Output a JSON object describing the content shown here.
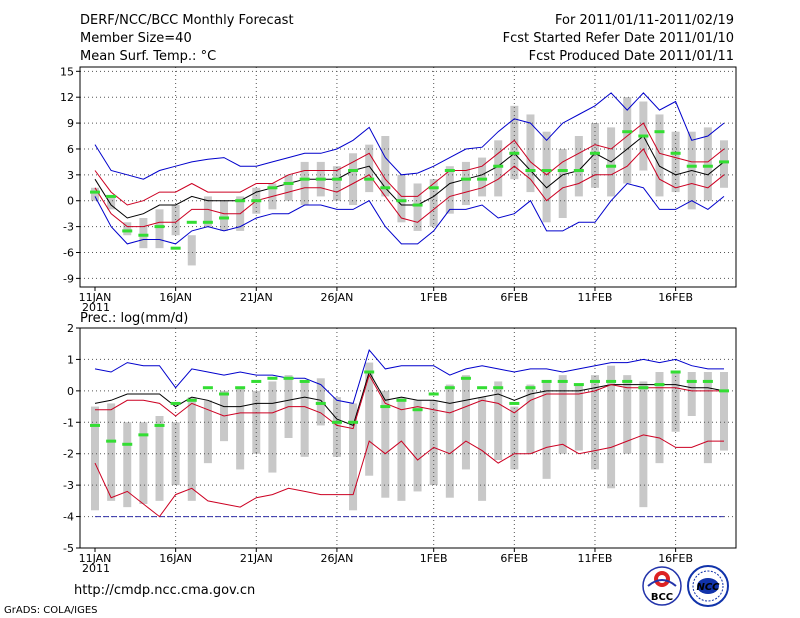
{
  "header": {
    "title": "DERF/NCC/BCC Monthly Forecast",
    "member_size": "Member Size=40",
    "variable_temp": "Mean Surf. Temp.: °C",
    "valid_range": "For 2011/01/11-2011/02/19",
    "start_date": "Fcst Started Refer Date 2011/01/10",
    "produced_date": "Fcst Produced Date 2011/01/11"
  },
  "footer": {
    "url": "http://cmdp.ncc.cma.gov.cn",
    "credit": "GrADS: COLA/IGES",
    "logo_bcc": "BCC",
    "logo_ncc": "NCC"
  },
  "colors": {
    "upper": "#0000cc",
    "lower": "#0000cc",
    "inner": "#cc0022",
    "mean": "#000000",
    "box": "#c8c8c8",
    "obs": "#33dd33",
    "grid": "#555555"
  },
  "chart_data": [
    {
      "type": "line",
      "title": "Mean Surf. Temp.: °C",
      "ylim": [
        -10,
        15.5
      ],
      "yticks": [
        -9,
        -6,
        -3,
        0,
        3,
        6,
        9,
        12,
        15
      ],
      "xticks": [
        {
          "day": 0,
          "label": "11JAN",
          "sub": "2011"
        },
        {
          "day": 5,
          "label": "16JAN"
        },
        {
          "day": 10,
          "label": "21JAN"
        },
        {
          "day": 15,
          "label": "26JAN"
        },
        {
          "day": 21,
          "label": "1FEB"
        },
        {
          "day": 26,
          "label": "6FEB"
        },
        {
          "day": 31,
          "label": "11FEB"
        },
        {
          "day": 36,
          "label": "16FEB"
        }
      ],
      "days": 40,
      "series": [
        {
          "name": "max",
          "color_key": "upper",
          "values": [
            6.5,
            3.5,
            3.0,
            2.5,
            3.5,
            4.0,
            4.5,
            4.8,
            5.0,
            4.0,
            4.0,
            4.5,
            5.0,
            5.5,
            5.5,
            6.0,
            7.0,
            8.5,
            5.0,
            3.0,
            3.2,
            4.0,
            5.0,
            6.0,
            6.2,
            8.0,
            9.5,
            9.0,
            7.0,
            9.0,
            10.0,
            11.0,
            12.5,
            10.5,
            12.5,
            10.5,
            11.5,
            7.0,
            7.5,
            9.0
          ]
        },
        {
          "name": "p90",
          "color_key": "inner",
          "values": [
            3.5,
            1.0,
            -0.5,
            0.0,
            1.0,
            1.0,
            2.0,
            1.0,
            1.0,
            1.0,
            2.0,
            2.0,
            3.0,
            3.5,
            3.5,
            3.5,
            4.5,
            5.5,
            2.5,
            0.5,
            0.5,
            2.0,
            3.5,
            3.5,
            4.0,
            5.5,
            7.0,
            4.5,
            3.0,
            4.5,
            5.5,
            6.5,
            6.0,
            7.5,
            9.0,
            5.5,
            5.0,
            4.5,
            4.5,
            6.0
          ]
        },
        {
          "name": "mean",
          "color_key": "mean",
          "values": [
            2.5,
            -0.5,
            -2.0,
            -1.5,
            -0.5,
            -0.5,
            0.5,
            0.0,
            0.0,
            0.0,
            1.0,
            1.5,
            2.0,
            2.5,
            2.5,
            2.5,
            3.5,
            4.0,
            1.5,
            -0.5,
            -0.5,
            0.5,
            2.0,
            2.5,
            3.0,
            4.0,
            5.5,
            3.5,
            1.5,
            3.0,
            3.5,
            5.5,
            4.5,
            6.0,
            7.5,
            4.0,
            3.0,
            3.5,
            3.0,
            4.5
          ]
        },
        {
          "name": "p10",
          "color_key": "inner",
          "values": [
            1.5,
            -1.5,
            -3.0,
            -3.0,
            -2.5,
            -2.5,
            -1.0,
            -1.0,
            -1.5,
            -1.5,
            0.0,
            0.5,
            1.0,
            1.5,
            1.5,
            1.0,
            2.0,
            3.0,
            0.5,
            -2.0,
            -2.5,
            -1.0,
            0.5,
            1.0,
            1.5,
            2.5,
            4.0,
            2.5,
            0.0,
            1.5,
            2.0,
            3.0,
            3.0,
            4.0,
            6.0,
            2.5,
            1.5,
            2.0,
            1.5,
            3.0
          ]
        },
        {
          "name": "min",
          "color_key": "lower",
          "values": [
            0.5,
            -3.0,
            -5.0,
            -4.5,
            -4.5,
            -5.0,
            -3.5,
            -3.0,
            -3.5,
            -3.0,
            -2.0,
            -1.5,
            -1.5,
            -0.5,
            -0.5,
            -1.0,
            -1.0,
            0.0,
            -3.0,
            -5.0,
            -5.0,
            -3.5,
            -1.0,
            -1.0,
            -0.5,
            -2.0,
            -1.5,
            0.0,
            -3.5,
            -3.5,
            -2.5,
            -2.5,
            0.0,
            2.0,
            1.5,
            -1.0,
            -1.0,
            0.0,
            -1.0,
            0.5
          ]
        }
      ],
      "boxes": [
        {
          "lo": 0.0,
          "hi": 1.5
        },
        {
          "lo": -1.0,
          "hi": 0.5
        },
        {
          "lo": -4.0,
          "hi": -2.5
        },
        {
          "lo": -5.5,
          "hi": -2.0
        },
        {
          "lo": -5.5,
          "hi": -1.0
        },
        {
          "lo": -4.0,
          "hi": -0.5
        },
        {
          "lo": -7.5,
          "hi": -4.0
        },
        {
          "lo": -3.0,
          "hi": 0.5
        },
        {
          "lo": -3.5,
          "hi": 0.0
        },
        {
          "lo": -3.5,
          "hi": 0.5
        },
        {
          "lo": -1.5,
          "hi": 1.5
        },
        {
          "lo": -1.0,
          "hi": 2.0
        },
        {
          "lo": 0.0,
          "hi": 3.0
        },
        {
          "lo": -0.5,
          "hi": 4.5
        },
        {
          "lo": 0.5,
          "hi": 4.5
        },
        {
          "lo": 0.0,
          "hi": 4.0
        },
        {
          "lo": -0.5,
          "hi": 5.5
        },
        {
          "lo": 1.0,
          "hi": 6.5
        },
        {
          "lo": 0.5,
          "hi": 7.5
        },
        {
          "lo": -2.5,
          "hi": 3.0
        },
        {
          "lo": -3.5,
          "hi": 2.0
        },
        {
          "lo": -3.0,
          "hi": 2.5
        },
        {
          "lo": -1.5,
          "hi": 4.0
        },
        {
          "lo": -0.5,
          "hi": 4.5
        },
        {
          "lo": 0.5,
          "hi": 5.0
        },
        {
          "lo": 0.5,
          "hi": 7.0
        },
        {
          "lo": 2.5,
          "hi": 11.0
        },
        {
          "lo": 1.0,
          "hi": 10.0
        },
        {
          "lo": -2.5,
          "hi": 8.0
        },
        {
          "lo": -2.0,
          "hi": 6.0
        },
        {
          "lo": 0.5,
          "hi": 7.5
        },
        {
          "lo": 1.5,
          "hi": 9.0
        },
        {
          "lo": 0.5,
          "hi": 8.5
        },
        {
          "lo": 2.0,
          "hi": 12.0
        },
        {
          "lo": 3.5,
          "hi": 11.5
        },
        {
          "lo": 0.5,
          "hi": 10.0
        },
        {
          "lo": 1.0,
          "hi": 8.0
        },
        {
          "lo": -1.0,
          "hi": 8.0
        },
        {
          "lo": 0.0,
          "hi": 8.5
        },
        {
          "lo": 1.5,
          "hi": 7.0
        }
      ],
      "observed": [
        1.0,
        0.5,
        -3.5,
        -4.0,
        -3.0,
        -5.5,
        -2.5,
        -2.5,
        -2.0,
        0.0,
        0.0,
        1.5,
        2.0,
        2.5,
        2.5,
        2.5,
        3.5,
        2.5,
        1.5,
        0.0,
        -0.5,
        1.5,
        3.5,
        2.5,
        2.5,
        4.0,
        5.5,
        3.5,
        3.5,
        3.5,
        3.5,
        5.5,
        4.0,
        8.0,
        7.5,
        8.0,
        5.5,
        4.0,
        4.0,
        4.5
      ]
    },
    {
      "type": "line",
      "title": "Prec.: log(mm/d)",
      "ylim": [
        -5,
        2
      ],
      "yticks": [
        -5,
        -4,
        -3,
        -2,
        -1,
        0,
        1,
        2
      ],
      "xticks": [
        {
          "day": 0,
          "label": "11JAN",
          "sub": "2011"
        },
        {
          "day": 5,
          "label": "16JAN"
        },
        {
          "day": 10,
          "label": "21JAN"
        },
        {
          "day": 15,
          "label": "26JAN"
        },
        {
          "day": 21,
          "label": "1FEB"
        },
        {
          "day": 26,
          "label": "6FEB"
        },
        {
          "day": 31,
          "label": "11FEB"
        },
        {
          "day": 36,
          "label": "16FEB"
        }
      ],
      "days": 40,
      "series": [
        {
          "name": "max",
          "color_key": "upper",
          "values": [
            0.7,
            0.6,
            0.9,
            0.8,
            0.8,
            0.1,
            0.7,
            0.6,
            0.5,
            0.6,
            0.5,
            0.5,
            0.4,
            0.4,
            0.2,
            -0.3,
            -0.4,
            1.3,
            0.7,
            0.8,
            0.8,
            0.8,
            0.5,
            0.7,
            0.8,
            0.7,
            0.6,
            0.7,
            0.7,
            0.6,
            0.7,
            0.8,
            0.9,
            0.9,
            1.0,
            0.9,
            1.0,
            0.8,
            0.7,
            0.7
          ]
        },
        {
          "name": "mean",
          "color_key": "mean",
          "values": [
            -0.4,
            -0.3,
            -0.1,
            -0.1,
            -0.1,
            -0.5,
            -0.2,
            -0.3,
            -0.5,
            -0.5,
            -0.4,
            -0.4,
            -0.3,
            -0.2,
            -0.3,
            -0.9,
            -1.1,
            0.6,
            -0.3,
            -0.2,
            -0.3,
            -0.3,
            -0.4,
            -0.3,
            -0.2,
            -0.1,
            -0.3,
            -0.1,
            0.0,
            0.0,
            0.0,
            0.1,
            0.2,
            0.2,
            0.2,
            0.2,
            0.2,
            0.1,
            0.1,
            0.0
          ]
        },
        {
          "name": "median",
          "color_key": "inner",
          "values": [
            -0.6,
            -0.6,
            -0.3,
            -0.3,
            -0.4,
            -0.8,
            -0.4,
            -0.6,
            -0.8,
            -0.7,
            -0.7,
            -0.7,
            -0.5,
            -0.5,
            -0.7,
            -1.1,
            -1.2,
            0.5,
            -0.4,
            -0.6,
            -0.5,
            -0.6,
            -0.7,
            -0.5,
            -0.3,
            -0.4,
            -0.7,
            -0.3,
            -0.1,
            -0.1,
            -0.1,
            0.0,
            0.2,
            0.1,
            0.1,
            0.1,
            0.1,
            0.0,
            0.0,
            0.0
          ]
        },
        {
          "name": "min",
          "color_key": "inner",
          "values": [
            -2.3,
            -3.4,
            -3.2,
            -3.6,
            -4.0,
            -3.3,
            -3.1,
            -3.5,
            -3.6,
            -3.7,
            -3.4,
            -3.3,
            -3.1,
            -3.2,
            -3.3,
            -3.3,
            -3.3,
            -1.6,
            -2.0,
            -1.6,
            -2.2,
            -1.8,
            -2.0,
            -1.6,
            -1.9,
            -2.3,
            -2.0,
            -2.0,
            -1.8,
            -1.7,
            -2.0,
            -1.9,
            -1.8,
            -1.6,
            -1.4,
            -1.5,
            -1.8,
            -1.8,
            -1.6,
            -1.6
          ]
        }
      ],
      "boxes": [
        {
          "lo": -3.8,
          "hi": -0.5
        },
        {
          "lo": -3.5,
          "hi": -0.4
        },
        {
          "lo": -3.7,
          "hi": -1.0
        },
        {
          "lo": -3.6,
          "hi": -1.0
        },
        {
          "lo": -3.5,
          "hi": -0.8
        },
        {
          "lo": -3.0,
          "hi": -1.0
        },
        {
          "lo": -3.5,
          "hi": -0.2
        },
        {
          "lo": -2.3,
          "hi": -0.3
        },
        {
          "lo": -1.6,
          "hi": 0.0
        },
        {
          "lo": -2.5,
          "hi": 0.1
        },
        {
          "lo": -2.0,
          "hi": 0.0
        },
        {
          "lo": -2.6,
          "hi": 0.3
        },
        {
          "lo": -1.5,
          "hi": 0.5
        },
        {
          "lo": -2.1,
          "hi": 0.3
        },
        {
          "lo": -1.1,
          "hi": 0.4
        },
        {
          "lo": -2.1,
          "hi": -0.2
        },
        {
          "lo": -3.8,
          "hi": -0.4
        },
        {
          "lo": -2.7,
          "hi": 0.9
        },
        {
          "lo": -3.4,
          "hi": 0.0
        },
        {
          "lo": -3.5,
          "hi": -0.2
        },
        {
          "lo": -3.2,
          "hi": -0.3
        },
        {
          "lo": -3.0,
          "hi": -0.3
        },
        {
          "lo": -3.4,
          "hi": 0.2
        },
        {
          "lo": -2.5,
          "hi": 0.5
        },
        {
          "lo": -3.5,
          "hi": -0.2
        },
        {
          "lo": -2.2,
          "hi": 0.3
        },
        {
          "lo": -2.5,
          "hi": -0.5
        },
        {
          "lo": -2.0,
          "hi": 0.2
        },
        {
          "lo": -2.8,
          "hi": 0.3
        },
        {
          "lo": -2.0,
          "hi": 0.5
        },
        {
          "lo": -1.9,
          "hi": 0.2
        },
        {
          "lo": -2.5,
          "hi": 0.5
        },
        {
          "lo": -3.1,
          "hi": 0.8
        },
        {
          "lo": -2.0,
          "hi": 0.5
        },
        {
          "lo": -3.7,
          "hi": 0.3
        },
        {
          "lo": -2.3,
          "hi": 0.6
        },
        {
          "lo": -1.3,
          "hi": 0.6
        },
        {
          "lo": -0.8,
          "hi": 0.6
        },
        {
          "lo": -2.3,
          "hi": 0.6
        },
        {
          "lo": -1.9,
          "hi": 0.6
        }
      ],
      "observed": [
        -1.1,
        -1.6,
        -1.7,
        -1.4,
        -1.1,
        -0.4,
        -0.3,
        0.1,
        -0.1,
        0.1,
        0.3,
        0.4,
        0.4,
        0.3,
        -0.4,
        -1.0,
        -1.0,
        0.6,
        -0.5,
        -0.3,
        -0.6,
        -0.1,
        0.1,
        0.4,
        0.1,
        0.1,
        -0.4,
        0.1,
        0.3,
        0.3,
        0.2,
        0.3,
        0.3,
        0.3,
        0.1,
        0.2,
        0.6,
        0.3,
        0.3,
        0.0
      ]
    }
  ]
}
